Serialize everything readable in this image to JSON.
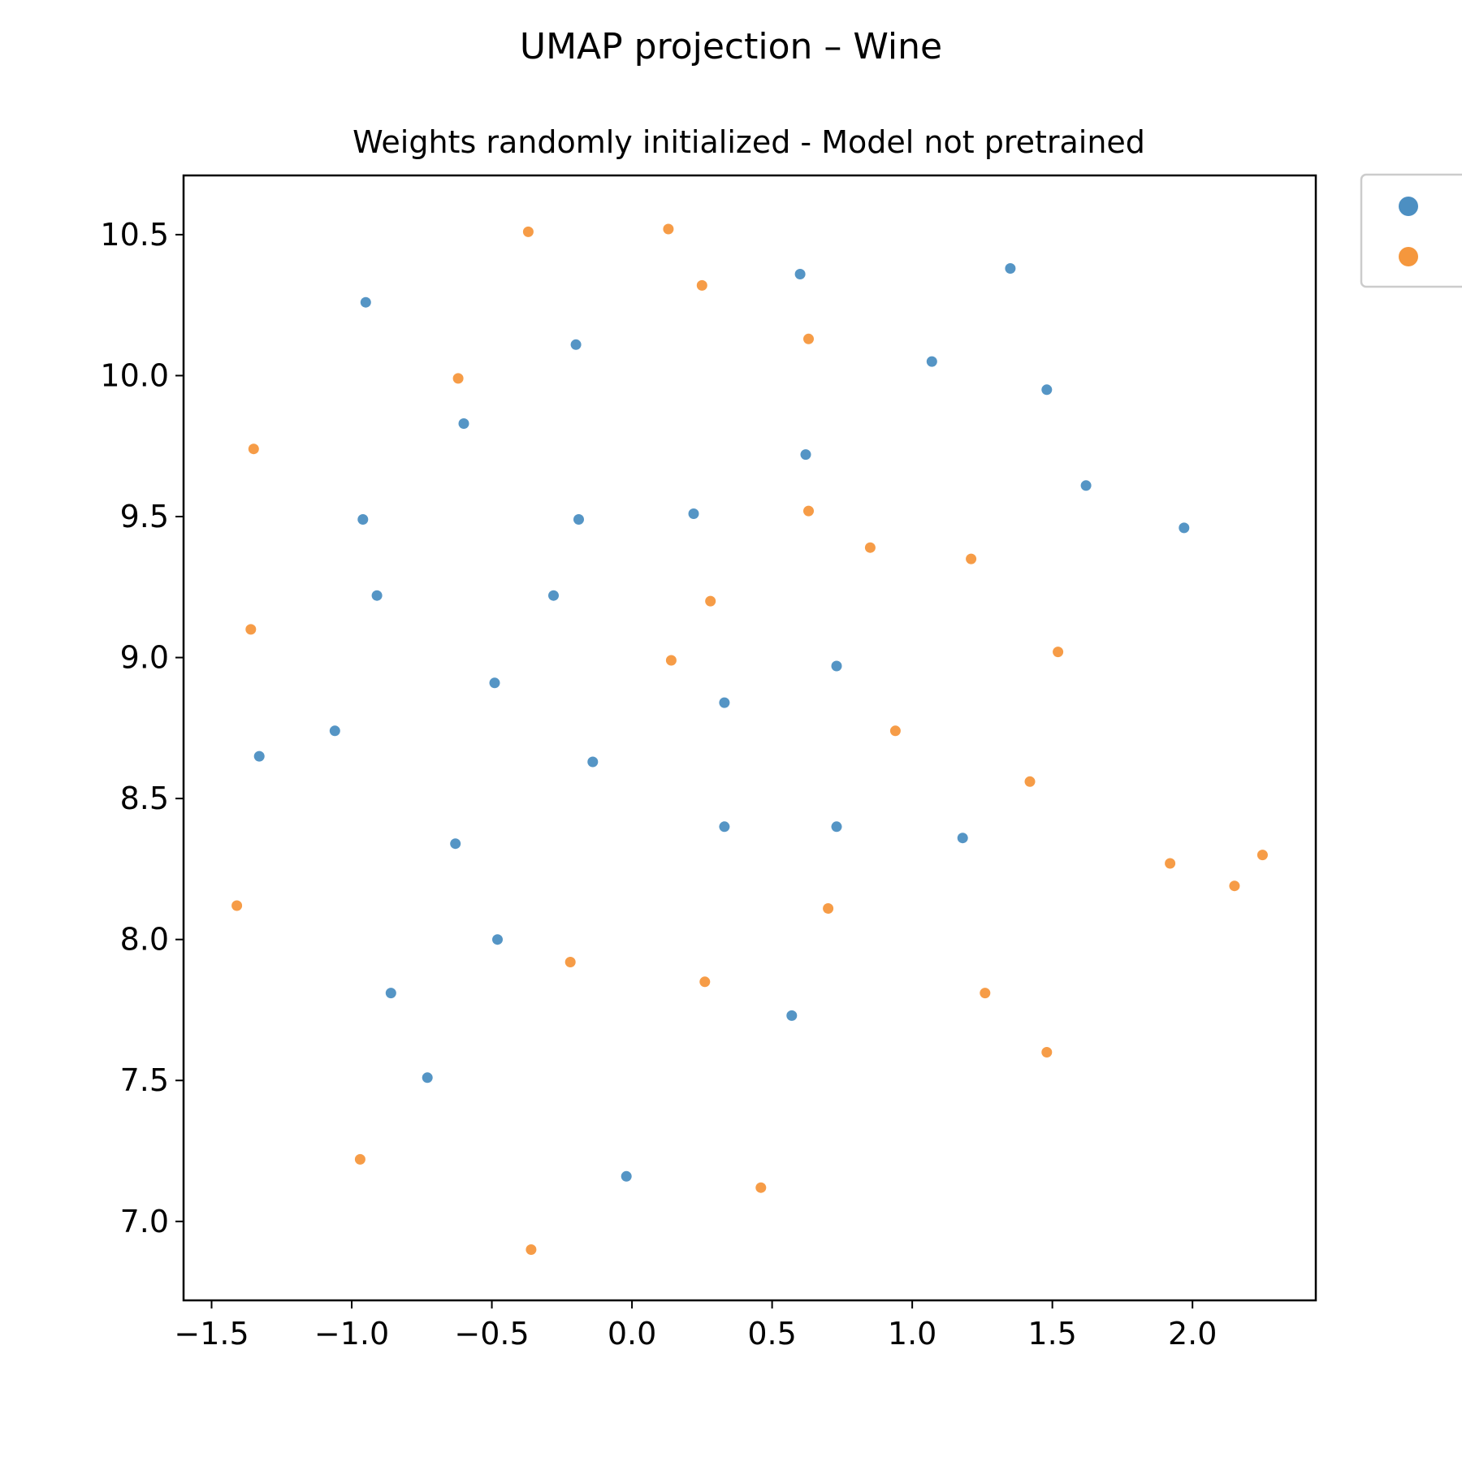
{
  "chart_data": {
    "type": "scatter",
    "title": "UMAP projection – Wine",
    "subtitle": "Weights randomly initialized - Model not pretrained",
    "xlabel": "",
    "ylabel": "",
    "xlim": [
      -1.6,
      2.44
    ],
    "ylim": [
      6.72,
      10.71
    ],
    "x_ticks": [
      "−1.5",
      "−1.0",
      "−0.5",
      "0.0",
      "0.5",
      "1.0",
      "1.5",
      "2.0"
    ],
    "x_tick_values": [
      -1.5,
      -1.0,
      -0.5,
      0.0,
      0.5,
      1.0,
      1.5,
      2.0
    ],
    "y_ticks": [
      "7.0",
      "7.5",
      "8.0",
      "8.5",
      "9.0",
      "9.5",
      "10.0",
      "10.5"
    ],
    "y_tick_values": [
      7.0,
      7.5,
      8.0,
      8.5,
      9.0,
      9.5,
      10.0,
      10.5
    ],
    "grid": false,
    "legend_position": "outside-top-right",
    "series": [
      {
        "color": "#4c8fc2",
        "points": [
          [
            -0.95,
            10.26
          ],
          [
            0.6,
            10.36
          ],
          [
            1.35,
            10.38
          ],
          [
            -0.2,
            10.11
          ],
          [
            1.07,
            10.05
          ],
          [
            1.48,
            9.95
          ],
          [
            -0.6,
            9.83
          ],
          [
            0.62,
            9.72
          ],
          [
            1.62,
            9.61
          ],
          [
            -0.96,
            9.49
          ],
          [
            -0.19,
            9.49
          ],
          [
            0.22,
            9.51
          ],
          [
            1.97,
            9.46
          ],
          [
            -0.91,
            9.22
          ],
          [
            -0.28,
            9.22
          ],
          [
            -0.49,
            8.91
          ],
          [
            0.73,
            8.97
          ],
          [
            0.33,
            8.84
          ],
          [
            -1.06,
            8.74
          ],
          [
            -1.33,
            8.65
          ],
          [
            -0.14,
            8.63
          ],
          [
            -0.63,
            8.34
          ],
          [
            0.33,
            8.4
          ],
          [
            0.73,
            8.4
          ],
          [
            1.18,
            8.36
          ],
          [
            -0.48,
            8.0
          ],
          [
            -0.86,
            7.81
          ],
          [
            0.57,
            7.73
          ],
          [
            -0.73,
            7.51
          ],
          [
            -0.02,
            7.16
          ]
        ]
      },
      {
        "color": "#f5973d",
        "points": [
          [
            -0.37,
            10.51
          ],
          [
            0.13,
            10.52
          ],
          [
            0.25,
            10.32
          ],
          [
            0.63,
            10.13
          ],
          [
            -0.62,
            9.99
          ],
          [
            -1.35,
            9.74
          ],
          [
            0.63,
            9.52
          ],
          [
            0.85,
            9.39
          ],
          [
            1.21,
            9.35
          ],
          [
            0.28,
            9.2
          ],
          [
            -1.36,
            9.1
          ],
          [
            0.14,
            8.99
          ],
          [
            1.52,
            9.02
          ],
          [
            0.94,
            8.74
          ],
          [
            1.42,
            8.56
          ],
          [
            1.92,
            8.27
          ],
          [
            2.25,
            8.3
          ],
          [
            2.15,
            8.19
          ],
          [
            -1.41,
            8.12
          ],
          [
            0.7,
            8.11
          ],
          [
            -0.22,
            7.92
          ],
          [
            0.26,
            7.85
          ],
          [
            1.26,
            7.81
          ],
          [
            1.48,
            7.6
          ],
          [
            -0.97,
            7.22
          ],
          [
            0.46,
            7.12
          ],
          [
            -0.36,
            6.9
          ]
        ]
      }
    ]
  }
}
